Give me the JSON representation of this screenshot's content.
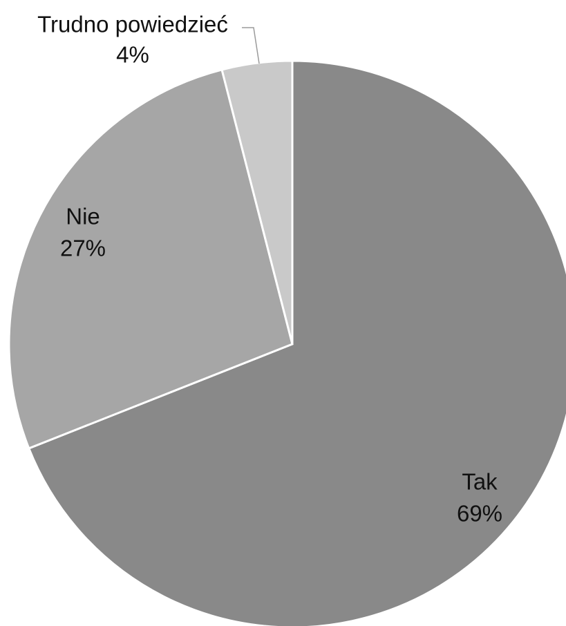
{
  "chart_data": {
    "type": "pie",
    "title": "",
    "slices": [
      {
        "label": "Tak",
        "value": 69,
        "value_label": "69%",
        "color": "#898989"
      },
      {
        "label": "Nie",
        "value": 27,
        "value_label": "27%",
        "color": "#a6a6a6"
      },
      {
        "label": "Trudno powiedzieć",
        "value": 4,
        "value_label": "4%",
        "color": "#c9c9c9"
      }
    ],
    "start": "12 o'clock",
    "direction": "clockwise",
    "legend": "none"
  }
}
